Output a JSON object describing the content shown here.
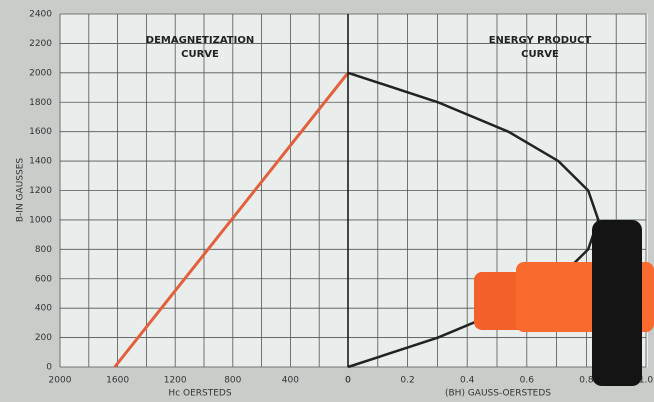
{
  "chart_data": [
    {
      "type": "line",
      "title": [
        "DEMAGNETIZATION",
        "CURVE"
      ],
      "x_label": "Hc OERSTEDS",
      "y_label": "B-IN GAUSSES",
      "x": [
        1620,
        0
      ],
      "values": [
        0,
        2000
      ],
      "color": "#e2603c",
      "xlim": [
        2000,
        0
      ],
      "xticks": [
        2000,
        1600,
        1200,
        800,
        400,
        0
      ],
      "ylim": [
        0,
        2400
      ],
      "yticks": [
        0,
        200,
        400,
        600,
        800,
        1000,
        1200,
        1400,
        1600,
        1800,
        2000,
        2200,
        2400
      ],
      "grid": true
    },
    {
      "type": "line",
      "title": [
        "ENERGY PRODUCT",
        "CURVE"
      ],
      "x_label": "(BH) GAUSS-OERSTEDS",
      "x": [
        0,
        0.302,
        0.538,
        0.706,
        0.806,
        0.84,
        0.806,
        0.706,
        0.538,
        0.302,
        0
      ],
      "values": [
        0,
        200,
        400,
        600,
        800,
        1000,
        1200,
        1400,
        1600,
        1800,
        2000
      ],
      "color": "#222222",
      "xlim": [
        0,
        1
      ],
      "xticks": [
        0,
        0.2,
        0.4,
        0.6,
        0.8,
        {
          "value": 1,
          "label": "1.0"
        }
      ],
      "ylim": [
        0,
        2400
      ],
      "grid": true
    }
  ]
}
